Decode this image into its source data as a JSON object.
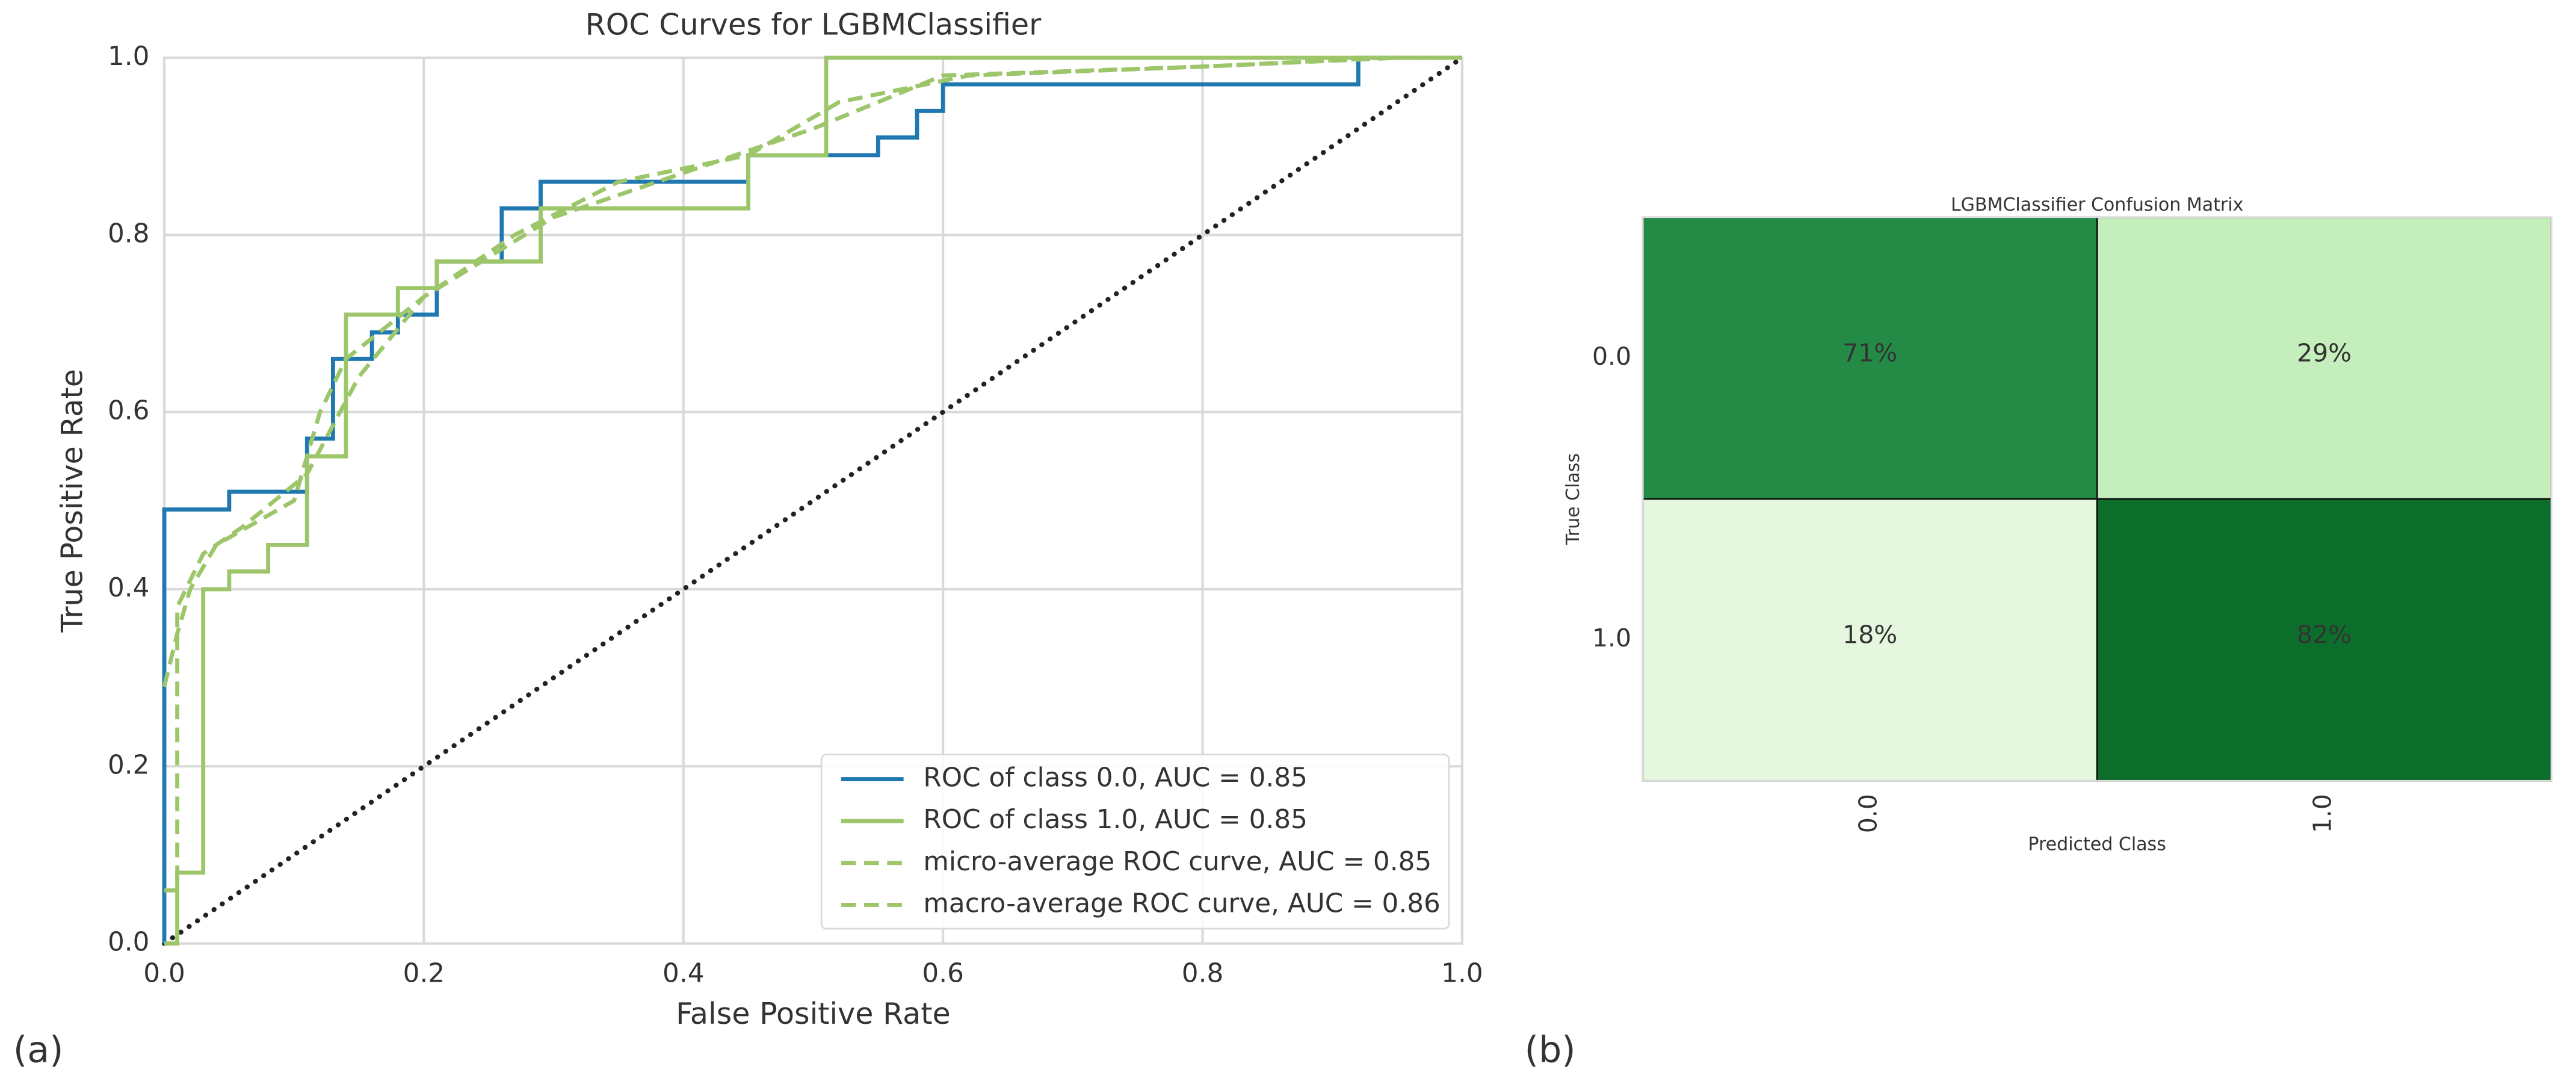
{
  "chart_data": [
    {
      "type": "line",
      "title": "ROC Curves for LGBMClassifier",
      "panel_label": "(a)",
      "xlabel": "False Positive Rate",
      "ylabel": "True Positive Rate",
      "xlim": [
        0,
        1
      ],
      "ylim": [
        0,
        1
      ],
      "xticks": [
        {
          "value": 0,
          "label": "0.0"
        },
        0.2,
        0.4,
        0.6,
        0.8,
        {
          "value": 1,
          "label": "1.0"
        }
      ],
      "yticks": [
        {
          "value": 0,
          "label": "0.0"
        },
        0.2,
        0.4,
        0.6,
        0.8,
        {
          "value": 1,
          "label": "1.0"
        }
      ],
      "grid": true,
      "legend": "lower right",
      "series": [
        {
          "name": "ROC of class 0.0, AUC = 0.85",
          "color": "#1f78b0",
          "linestyle": "solid",
          "x": [
            0,
            0,
            0.05,
            0.05,
            0.11,
            0.11,
            0.13,
            0.13,
            0.16,
            0.16,
            0.18,
            0.18,
            0.21,
            0.21,
            0.26,
            0.26,
            0.29,
            0.29,
            0.45,
            0.45,
            0.55,
            0.55,
            0.58,
            0.58,
            0.6,
            0.6,
            0.92,
            0.92,
            1
          ],
          "y": [
            0,
            0.49,
            0.49,
            0.51,
            0.51,
            0.57,
            0.57,
            0.66,
            0.66,
            0.69,
            0.69,
            0.71,
            0.71,
            0.77,
            0.77,
            0.83,
            0.83,
            0.86,
            0.86,
            0.89,
            0.89,
            0.91,
            0.91,
            0.94,
            0.94,
            0.97,
            0.97,
            1,
            1
          ]
        },
        {
          "name": "ROC of class 1.0, AUC = 0.85",
          "color": "#9dc66b",
          "linestyle": "solid",
          "x": [
            0,
            0.01,
            0.01,
            0.03,
            0.03,
            0.05,
            0.05,
            0.08,
            0.08,
            0.11,
            0.11,
            0.14,
            0.14,
            0.18,
            0.18,
            0.21,
            0.21,
            0.29,
            0.29,
            0.45,
            0.45,
            0.51,
            0.51,
            1
          ],
          "y": [
            0,
            0,
            0.08,
            0.08,
            0.4,
            0.4,
            0.42,
            0.42,
            0.45,
            0.45,
            0.55,
            0.55,
            0.71,
            0.71,
            0.74,
            0.74,
            0.77,
            0.77,
            0.83,
            0.83,
            0.89,
            0.89,
            1,
            1
          ]
        },
        {
          "name": "micro-average ROC curve, AUC = 0.85",
          "color": "#9dc66b",
          "linestyle": "dashed",
          "x": [
            0,
            0.01,
            0.02,
            0.04,
            0.1,
            0.12,
            0.14,
            0.2,
            0.3,
            0.4,
            0.5,
            0.6,
            0.8,
            0.95,
            1
          ],
          "y": [
            0.29,
            0.35,
            0.4,
            0.45,
            0.5,
            0.6,
            0.66,
            0.73,
            0.82,
            0.87,
            0.92,
            0.98,
            0.99,
            1,
            1
          ]
        },
        {
          "name": "macro-average ROC curve, AUC = 0.86",
          "color": "#9dc66b",
          "linestyle": "dashed",
          "x": [
            0,
            0.01,
            0.01,
            0.03,
            0.06,
            0.11,
            0.15,
            0.2,
            0.27,
            0.35,
            0.45,
            0.52,
            0.62,
            0.8,
            0.94,
            1
          ],
          "y": [
            0.06,
            0.06,
            0.38,
            0.44,
            0.47,
            0.53,
            0.64,
            0.73,
            0.8,
            0.86,
            0.89,
            0.95,
            0.98,
            0.99,
            1,
            1
          ]
        }
      ]
    },
    {
      "type": "heatmap",
      "title": "LGBMClassifier Confusion Matrix",
      "panel_label": "(b)",
      "xlabel": "Predicted Class",
      "ylabel": "True Class",
      "x_categories": [
        "0.0",
        "1.0"
      ],
      "y_categories": [
        "0.0",
        "1.0"
      ],
      "values": [
        [
          71,
          29
        ],
        [
          18,
          82
        ]
      ],
      "value_labels": [
        [
          "71%",
          "29%"
        ],
        [
          "18%",
          "82%"
        ]
      ],
      "colors": [
        [
          "#238b45",
          "#c5eebd"
        ],
        [
          "#e6f7df",
          "#0d6e2c"
        ]
      ]
    }
  ]
}
